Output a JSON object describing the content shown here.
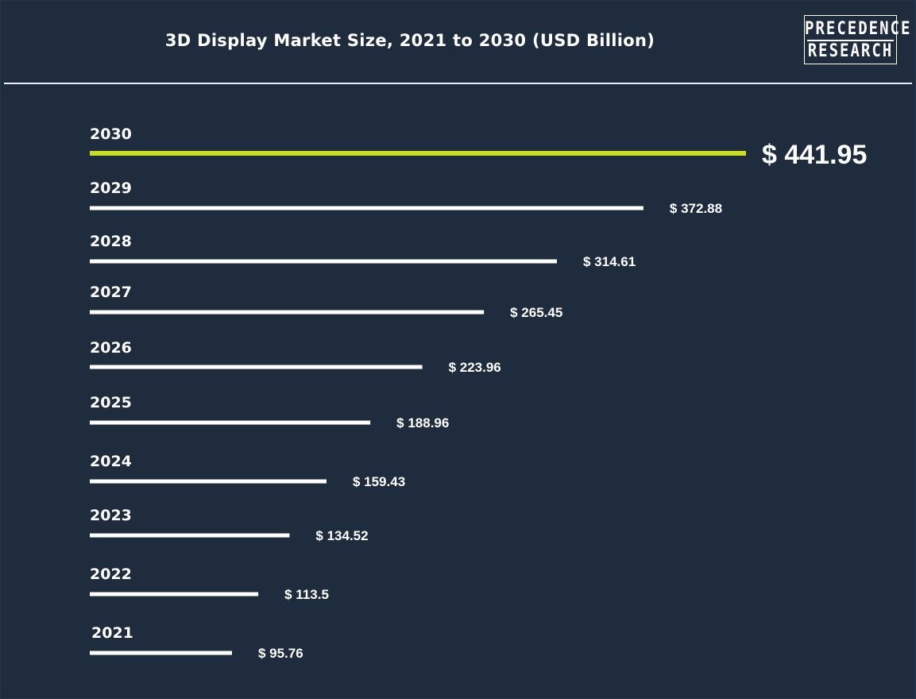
{
  "title": "3D Display Market Size, 2021 to 2030 (USD Billion)",
  "logo": {
    "line1": "PRECEDENCE",
    "line2": "RESEARCH"
  },
  "colors": {
    "background": "#1e2c3e",
    "bar": "#ffffff",
    "highlight_bar": "#c8e021",
    "text": "#ffffff"
  },
  "chart_data": {
    "type": "bar",
    "orientation": "horizontal",
    "title": "3D Display Market Size, 2021 to 2030 (USD Billion)",
    "xlabel": "",
    "ylabel": "",
    "grid": false,
    "categories": [
      "2030",
      "2029",
      "2028",
      "2027",
      "2026",
      "2025",
      "2024",
      "2023",
      "2022",
      "2021"
    ],
    "values": [
      441.95,
      372.88,
      314.61,
      265.45,
      223.96,
      188.96,
      159.43,
      134.52,
      113.5,
      95.76
    ],
    "value_labels": [
      "$ 441.95",
      "$ 372.88",
      "$ 314.61",
      "$ 265.45",
      "$ 223.96",
      "$ 188.96",
      "$ 159.43",
      "$ 134.52",
      "$ 113.5",
      "$ 95.76"
    ],
    "highlight_category": "2030"
  }
}
